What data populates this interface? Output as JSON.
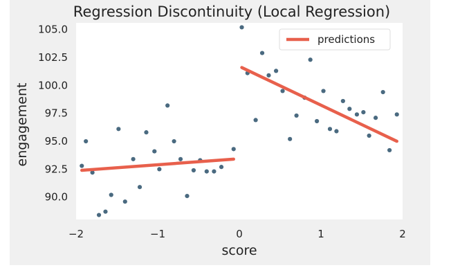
{
  "chart_data": {
    "type": "scatter",
    "title": "Regression Discontinuity (Local Regression)",
    "xlabel": "score",
    "ylabel": "engagement",
    "xlim": [
      -2.0,
      2.0
    ],
    "ylim": [
      88.0,
      105.6
    ],
    "xticks": [
      -2,
      -1,
      0,
      1,
      2
    ],
    "xtick_labels": [
      "−2",
      "−1",
      "0",
      "1",
      "2"
    ],
    "yticks": [
      90.0,
      92.5,
      95.0,
      97.5,
      100.0,
      102.5,
      105.0
    ],
    "ytick_labels": [
      "90.0",
      "92.5",
      "95.0",
      "97.5",
      "100.0",
      "102.5",
      "105.0"
    ],
    "grid": false,
    "legend_position": "top-right",
    "colors": {
      "points": "#4a6a80",
      "predictions": "#e8604c",
      "plot_background": "#ffffff",
      "figure_background": "#f0f0f0"
    },
    "points": [
      {
        "x": -1.93,
        "y": 92.8
      },
      {
        "x": -1.88,
        "y": 95.0
      },
      {
        "x": -1.8,
        "y": 92.2
      },
      {
        "x": -1.72,
        "y": 88.4
      },
      {
        "x": -1.64,
        "y": 88.7
      },
      {
        "x": -1.57,
        "y": 90.2
      },
      {
        "x": -1.48,
        "y": 96.1
      },
      {
        "x": -1.4,
        "y": 89.6
      },
      {
        "x": -1.3,
        "y": 93.4
      },
      {
        "x": -1.22,
        "y": 90.9
      },
      {
        "x": -1.14,
        "y": 95.8
      },
      {
        "x": -1.04,
        "y": 94.1
      },
      {
        "x": -0.98,
        "y": 92.5
      },
      {
        "x": -0.88,
        "y": 98.2
      },
      {
        "x": -0.8,
        "y": 95.0
      },
      {
        "x": -0.72,
        "y": 93.4
      },
      {
        "x": -0.64,
        "y": 90.1
      },
      {
        "x": -0.56,
        "y": 92.4
      },
      {
        "x": -0.48,
        "y": 93.3
      },
      {
        "x": -0.4,
        "y": 92.3
      },
      {
        "x": -0.31,
        "y": 92.3
      },
      {
        "x": -0.22,
        "y": 92.7
      },
      {
        "x": -0.07,
        "y": 94.3
      },
      {
        "x": 0.03,
        "y": 105.2
      },
      {
        "x": 0.1,
        "y": 101.1
      },
      {
        "x": 0.2,
        "y": 96.9
      },
      {
        "x": 0.28,
        "y": 102.9
      },
      {
        "x": 0.36,
        "y": 100.9
      },
      {
        "x": 0.45,
        "y": 101.3
      },
      {
        "x": 0.53,
        "y": 99.5
      },
      {
        "x": 0.62,
        "y": 95.2
      },
      {
        "x": 0.7,
        "y": 97.3
      },
      {
        "x": 0.8,
        "y": 98.9
      },
      {
        "x": 0.87,
        "y": 102.3
      },
      {
        "x": 0.95,
        "y": 96.8
      },
      {
        "x": 1.03,
        "y": 99.5
      },
      {
        "x": 1.11,
        "y": 96.1
      },
      {
        "x": 1.19,
        "y": 95.9
      },
      {
        "x": 1.27,
        "y": 98.6
      },
      {
        "x": 1.35,
        "y": 97.9
      },
      {
        "x": 1.44,
        "y": 97.4
      },
      {
        "x": 1.52,
        "y": 97.6
      },
      {
        "x": 1.59,
        "y": 95.5
      },
      {
        "x": 1.67,
        "y": 97.1
      },
      {
        "x": 1.76,
        "y": 99.4
      },
      {
        "x": 1.84,
        "y": 94.2
      },
      {
        "x": 1.93,
        "y": 97.4
      }
    ],
    "series": [
      {
        "name": "predictions",
        "type": "line",
        "segments": [
          [
            {
              "x": -1.93,
              "y": 92.4
            },
            {
              "x": -0.07,
              "y": 93.4
            }
          ],
          [
            {
              "x": 0.03,
              "y": 101.6
            },
            {
              "x": 1.93,
              "y": 95.0
            }
          ]
        ]
      }
    ]
  }
}
